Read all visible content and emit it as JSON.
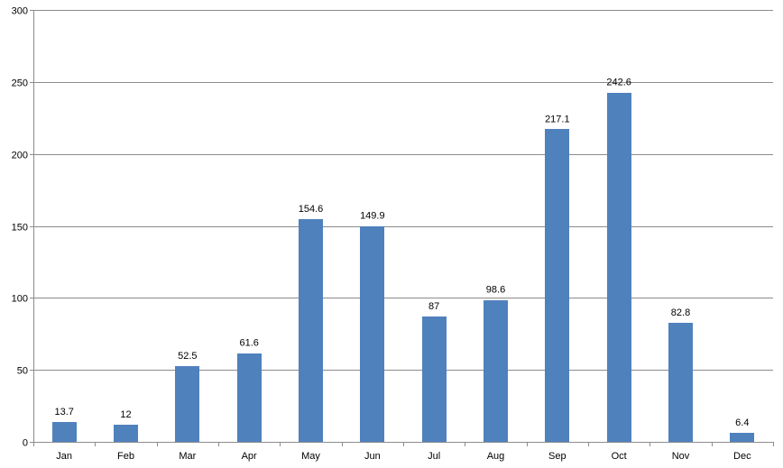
{
  "chart_data": {
    "type": "bar",
    "title": "",
    "xlabel": "",
    "ylabel": "",
    "categories": [
      "Jan",
      "Feb",
      "Mar",
      "Apr",
      "May",
      "Jun",
      "Jul",
      "Aug",
      "Sep",
      "Oct",
      "Nov",
      "Dec"
    ],
    "values": [
      13.7,
      12,
      52.5,
      61.6,
      154.6,
      149.9,
      87,
      98.6,
      217.1,
      242.6,
      82.8,
      6.4
    ],
    "value_labels": [
      "13.7",
      "12",
      "52.5",
      "61.6",
      "154.6",
      "149.9",
      "87",
      "98.6",
      "217.1",
      "242.6",
      "82.8",
      "6.4"
    ],
    "ylim": [
      0,
      300
    ],
    "yticks": [
      "0",
      "50",
      "100",
      "150",
      "200",
      "250",
      "300"
    ],
    "grid": true,
    "legend": "none",
    "bar_color": "#4f81bd"
  }
}
